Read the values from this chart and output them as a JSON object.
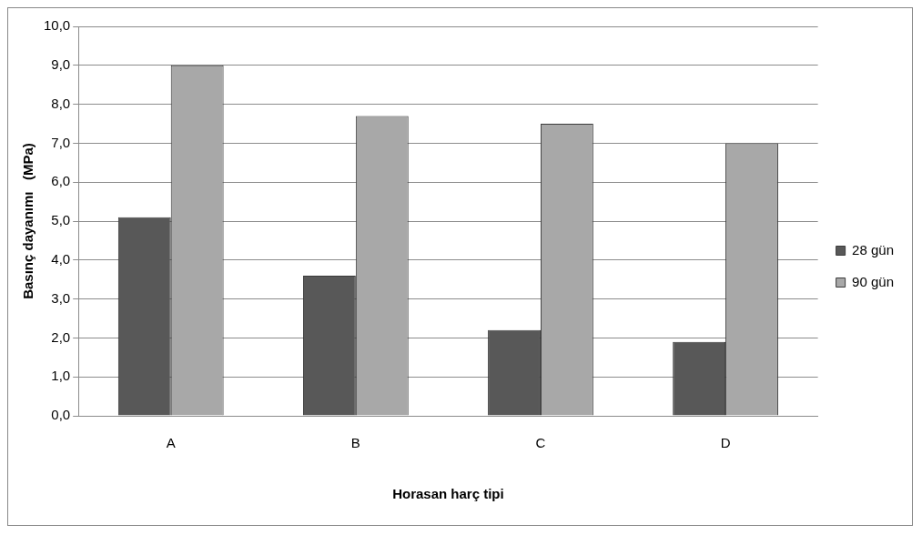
{
  "chart_data": {
    "type": "bar",
    "xlabel": "Horasan harç tipi",
    "ylabel": "Basınç dayanımı   (MPa)",
    "categories": [
      "A",
      "B",
      "C",
      "D"
    ],
    "series": [
      {
        "name": "28 gün",
        "color": "#585858",
        "values": [
          5.1,
          3.6,
          2.2,
          1.9
        ]
      },
      {
        "name": "90 gün",
        "color": "#a8a8a8",
        "values": [
          9.0,
          7.7,
          7.5,
          7.0
        ]
      }
    ],
    "ylim": [
      0,
      10
    ],
    "yticks": [
      {
        "value": 0,
        "label": "0,0"
      },
      {
        "value": 1,
        "label": "1,0"
      },
      {
        "value": 2,
        "label": "2,0"
      },
      {
        "value": 3,
        "label": "3,0"
      },
      {
        "value": 4,
        "label": "4,0"
      },
      {
        "value": 5,
        "label": "5,0"
      },
      {
        "value": 6,
        "label": "6,0"
      },
      {
        "value": 7,
        "label": "7,0"
      },
      {
        "value": 8,
        "label": "8,0"
      },
      {
        "value": 9,
        "label": "9,0"
      },
      {
        "value": 10,
        "label": "10,0"
      }
    ],
    "grid": "y",
    "legend": "right"
  }
}
